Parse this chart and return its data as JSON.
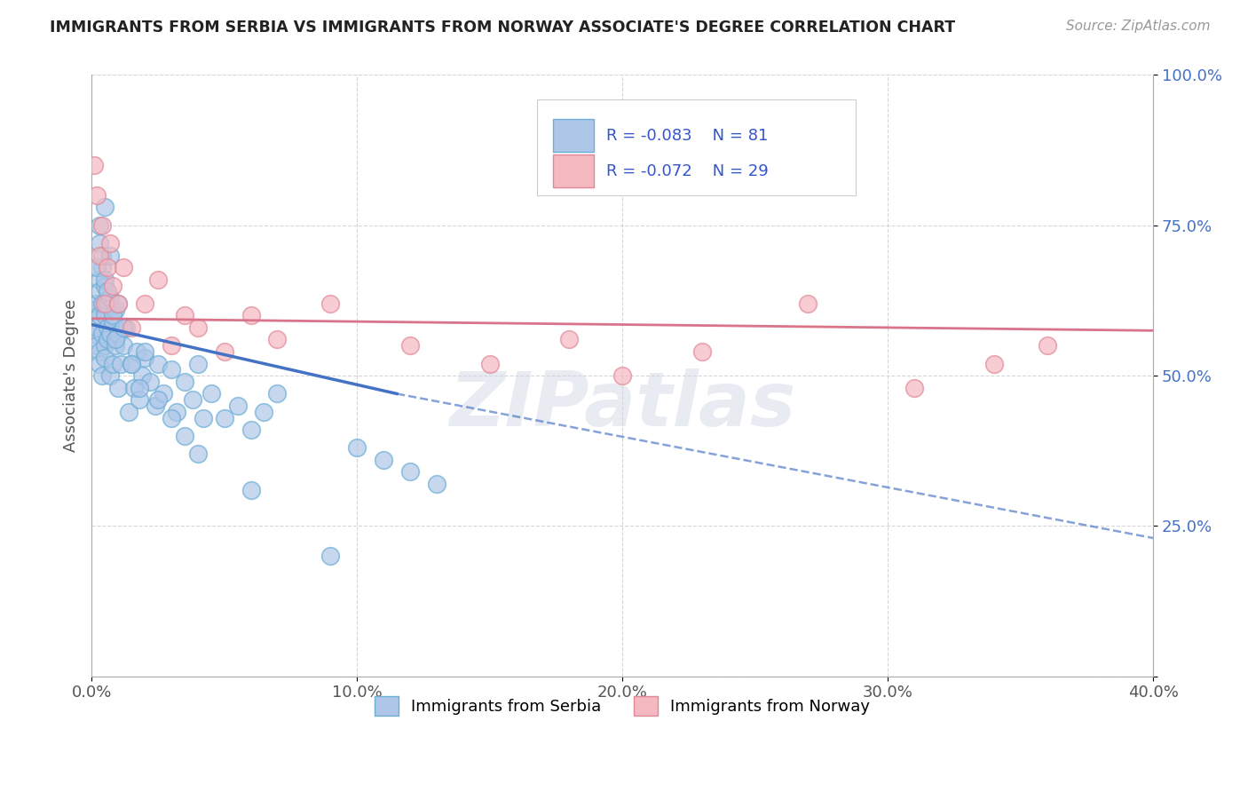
{
  "title": "IMMIGRANTS FROM SERBIA VS IMMIGRANTS FROM NORWAY ASSOCIATE'S DEGREE CORRELATION CHART",
  "source_text": "Source: ZipAtlas.com",
  "ylabel": "Associate's Degree",
  "x_min": 0.0,
  "x_max": 0.4,
  "y_min": 0.0,
  "y_max": 1.0,
  "x_ticks": [
    0.0,
    0.1,
    0.2,
    0.3,
    0.4
  ],
  "x_tick_labels": [
    "0.0%",
    "10.0%",
    "20.0%",
    "30.0%",
    "40.0%"
  ],
  "y_ticks": [
    0.0,
    0.25,
    0.5,
    0.75,
    1.0
  ],
  "y_tick_labels": [
    "",
    "25.0%",
    "50.0%",
    "75.0%",
    "100.0%"
  ],
  "serbia_color": "#aec6e8",
  "norway_color": "#f4b8c1",
  "serbia_edge": "#6baed6",
  "norway_edge": "#e08898",
  "serbia_r": -0.083,
  "serbia_n": 81,
  "norway_r": -0.072,
  "norway_n": 29,
  "serbia_line_color": "#4472c4",
  "norway_line_color": "#d9748a",
  "legend_r_color": "#3355cc",
  "background_color": "#ffffff",
  "grid_color": "#cccccc",
  "serbia_x": [
    0.001,
    0.001,
    0.002,
    0.002,
    0.002,
    0.003,
    0.003,
    0.003,
    0.003,
    0.003,
    0.004,
    0.004,
    0.004,
    0.004,
    0.005,
    0.005,
    0.005,
    0.005,
    0.006,
    0.006,
    0.006,
    0.007,
    0.007,
    0.007,
    0.008,
    0.008,
    0.009,
    0.009,
    0.01,
    0.01,
    0.011,
    0.012,
    0.013,
    0.014,
    0.015,
    0.016,
    0.017,
    0.018,
    0.019,
    0.02,
    0.022,
    0.024,
    0.025,
    0.027,
    0.03,
    0.032,
    0.035,
    0.038,
    0.04,
    0.042,
    0.045,
    0.05,
    0.055,
    0.06,
    0.065,
    0.07,
    0.1,
    0.11,
    0.12,
    0.13,
    0.002,
    0.003,
    0.003,
    0.004,
    0.005,
    0.005,
    0.006,
    0.007,
    0.008,
    0.009,
    0.01,
    0.012,
    0.015,
    0.018,
    0.02,
    0.025,
    0.03,
    0.035,
    0.04,
    0.06,
    0.09
  ],
  "serbia_y": [
    0.57,
    0.61,
    0.55,
    0.62,
    0.58,
    0.54,
    0.6,
    0.66,
    0.52,
    0.64,
    0.57,
    0.62,
    0.5,
    0.68,
    0.55,
    0.6,
    0.65,
    0.53,
    0.58,
    0.62,
    0.56,
    0.5,
    0.63,
    0.57,
    0.52,
    0.59,
    0.55,
    0.61,
    0.48,
    0.57,
    0.52,
    0.55,
    0.58,
    0.44,
    0.52,
    0.48,
    0.54,
    0.46,
    0.5,
    0.53,
    0.49,
    0.45,
    0.52,
    0.47,
    0.51,
    0.44,
    0.49,
    0.46,
    0.52,
    0.43,
    0.47,
    0.43,
    0.45,
    0.41,
    0.44,
    0.47,
    0.38,
    0.36,
    0.34,
    0.32,
    0.68,
    0.72,
    0.75,
    0.7,
    0.66,
    0.78,
    0.64,
    0.7,
    0.6,
    0.56,
    0.62,
    0.58,
    0.52,
    0.48,
    0.54,
    0.46,
    0.43,
    0.4,
    0.37,
    0.31,
    0.2
  ],
  "norway_x": [
    0.001,
    0.002,
    0.003,
    0.004,
    0.005,
    0.006,
    0.007,
    0.008,
    0.01,
    0.012,
    0.015,
    0.02,
    0.025,
    0.03,
    0.035,
    0.04,
    0.05,
    0.06,
    0.07,
    0.09,
    0.12,
    0.15,
    0.18,
    0.2,
    0.23,
    0.27,
    0.31,
    0.34,
    0.36
  ],
  "norway_y": [
    0.85,
    0.8,
    0.7,
    0.75,
    0.62,
    0.68,
    0.72,
    0.65,
    0.62,
    0.68,
    0.58,
    0.62,
    0.66,
    0.55,
    0.6,
    0.58,
    0.54,
    0.6,
    0.56,
    0.62,
    0.55,
    0.52,
    0.56,
    0.5,
    0.54,
    0.62,
    0.48,
    0.52,
    0.55
  ],
  "serbia_line_x0": 0.0,
  "serbia_line_y0": 0.585,
  "serbia_line_solid_x1": 0.115,
  "serbia_line_y1": 0.47,
  "serbia_line_dash_x1": 0.4,
  "serbia_line_dash_y1": 0.23,
  "norway_line_x0": 0.0,
  "norway_line_y0": 0.595,
  "norway_line_x1": 0.4,
  "norway_line_y1": 0.575,
  "watermark": "ZIPatlas"
}
